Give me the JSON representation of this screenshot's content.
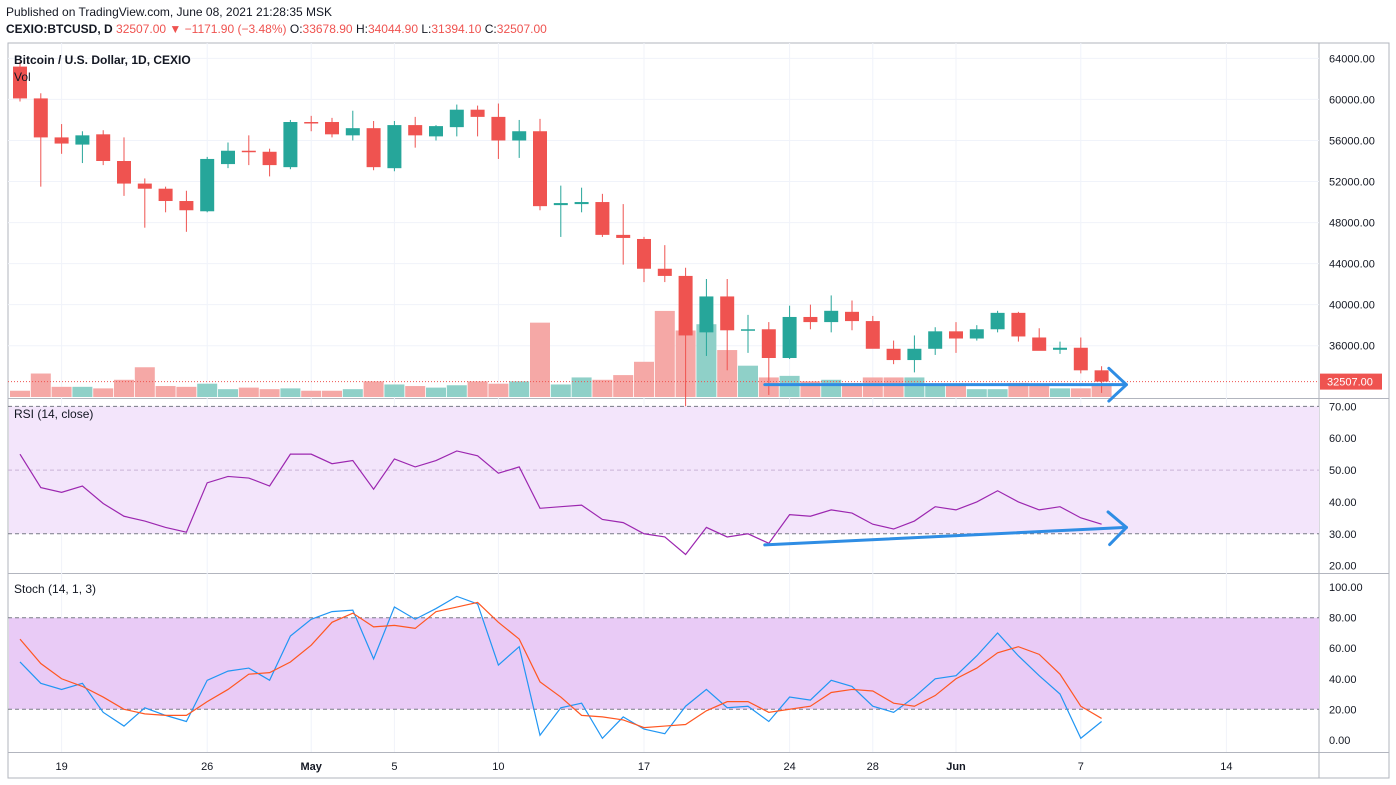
{
  "header": {
    "published": "Published on TradingView.com, June 08, 2021 21:28:35 MSK",
    "symbol": "CEXIO:BTCUSD, D",
    "last": "32507.00",
    "change": "−1171.90 (−3.48%)",
    "o_label": "O:",
    "o_value": "33678.90",
    "h_label": "H:",
    "h_value": "34044.90",
    "l_label": "L:",
    "l_value": "31394.10",
    "c_label": "C:",
    "c_value": "32507.00"
  },
  "colors": {
    "up": "#26a69a",
    "down": "#ef5350",
    "rsi": "#9c27b0",
    "stoch_k": "#2196f3",
    "stoch_d": "#ff5722",
    "arrow": "#2f8de4",
    "band": "#f3e5fb",
    "stoch_band": "#e9cbf6"
  },
  "chart_data": [
    {
      "type": "candlestick",
      "title": "Bitcoin / U.S. Dollar, 1D, CEXIO",
      "volume_label": "Vol",
      "last_price_label": "32507.00",
      "ylim": [
        31000,
        65500
      ],
      "y_ticks": [
        "64000.00",
        "60000.00",
        "56000.00",
        "52000.00",
        "48000.00",
        "44000.00",
        "40000.00",
        "36000.00"
      ],
      "x_ticks": [
        {
          "i": 2,
          "label": "19"
        },
        {
          "i": 9,
          "label": "26"
        },
        {
          "i": 14,
          "label": "May"
        },
        {
          "i": 18,
          "label": "5"
        },
        {
          "i": 23,
          "label": "10"
        },
        {
          "i": 30,
          "label": "17"
        },
        {
          "i": 37,
          "label": "24"
        },
        {
          "i": 41,
          "label": "28"
        },
        {
          "i": 45,
          "label": "Jun"
        },
        {
          "i": 51,
          "label": "7"
        },
        {
          "i": 58,
          "label": "14"
        }
      ],
      "ohlc": [
        [
          63200,
          63700,
          59800,
          60100
        ],
        [
          60100,
          60600,
          51500,
          56300
        ],
        [
          56300,
          57600,
          54700,
          55700
        ],
        [
          55600,
          56900,
          53800,
          56500
        ],
        [
          56600,
          57000,
          53600,
          54000
        ],
        [
          54000,
          56300,
          50600,
          51800
        ],
        [
          51800,
          52300,
          47500,
          51300
        ],
        [
          51300,
          51500,
          49000,
          50100
        ],
        [
          50100,
          51100,
          47100,
          49200
        ],
        [
          49100,
          54400,
          49000,
          54200
        ],
        [
          53700,
          55800,
          53300,
          55000
        ],
        [
          55000,
          56500,
          53600,
          54900
        ],
        [
          54900,
          55200,
          52500,
          53600
        ],
        [
          53400,
          58000,
          53200,
          57800
        ],
        [
          57800,
          58400,
          56900,
          57700
        ],
        [
          57800,
          58200,
          56300,
          56600
        ],
        [
          56500,
          58900,
          56000,
          57200
        ],
        [
          57200,
          57900,
          53100,
          53400
        ],
        [
          53300,
          57900,
          53000,
          57500
        ],
        [
          57500,
          58300,
          55300,
          56500
        ],
        [
          56400,
          57500,
          56000,
          57400
        ],
        [
          57300,
          59500,
          56400,
          59000
        ],
        [
          59000,
          59400,
          56400,
          58300
        ],
        [
          58300,
          59600,
          54200,
          56000
        ],
        [
          56000,
          58000,
          54300,
          56900
        ],
        [
          56900,
          58100,
          49200,
          49600
        ],
        [
          49700,
          51600,
          46600,
          49900
        ],
        [
          49800,
          51400,
          49000,
          50000
        ],
        [
          50000,
          50800,
          46600,
          46800
        ],
        [
          46800,
          49800,
          43900,
          46500
        ],
        [
          46400,
          46600,
          42200,
          43500
        ],
        [
          43500,
          45800,
          42200,
          42800
        ],
        [
          42800,
          43600,
          30100,
          37000
        ],
        [
          37300,
          42500,
          35000,
          40800
        ],
        [
          40800,
          42500,
          33600,
          37500
        ],
        [
          37500,
          39000,
          35300,
          37600
        ],
        [
          37600,
          38300,
          31200,
          34800
        ],
        [
          34800,
          39900,
          34700,
          38800
        ],
        [
          38800,
          40000,
          37600,
          38300
        ],
        [
          38300,
          40900,
          37300,
          39400
        ],
        [
          39300,
          40400,
          37500,
          38400
        ],
        [
          38400,
          38900,
          35800,
          35700
        ],
        [
          35700,
          36500,
          34200,
          34600
        ],
        [
          34600,
          37000,
          33400,
          35700
        ],
        [
          35700,
          37800,
          35100,
          37400
        ],
        [
          37400,
          38300,
          35300,
          36700
        ],
        [
          36700,
          38000,
          36500,
          37600
        ],
        [
          37600,
          39400,
          37300,
          39200
        ],
        [
          39200,
          39300,
          36400,
          36900
        ],
        [
          36800,
          37700,
          35700,
          35500
        ],
        [
          35600,
          36400,
          35200,
          35800
        ],
        [
          35800,
          36800,
          33300,
          33600
        ],
        [
          33600,
          34000,
          31400,
          32500
        ]
      ],
      "volume": [
        8,
        30,
        13,
        13,
        11,
        22,
        38,
        14,
        13,
        17,
        10,
        12,
        10,
        11,
        8,
        8,
        10,
        20,
        16,
        14,
        12,
        15,
        20,
        17,
        20,
        95,
        16,
        25,
        22,
        28,
        45,
        110,
        85,
        93,
        60,
        40,
        25,
        27,
        20,
        22,
        18,
        25,
        25,
        25,
        17,
        17,
        10,
        10,
        18,
        14,
        11,
        11,
        15
      ]
    },
    {
      "type": "line",
      "title": "RSI (14, close)",
      "ylim": [
        18,
        72
      ],
      "y_ticks": [
        "70.00",
        "60.00",
        "50.00",
        "40.00",
        "30.00",
        "20.00"
      ],
      "band": [
        30,
        70
      ],
      "series": [
        {
          "values": [
            55,
            44.5,
            43,
            45,
            39.5,
            35.5,
            34,
            32,
            30.5,
            46,
            48,
            47.5,
            45,
            55,
            55,
            52,
            53,
            44,
            53.5,
            51,
            53,
            56,
            54.5,
            49,
            51,
            38,
            38.5,
            39,
            34.5,
            33.5,
            30,
            29,
            23.5,
            32,
            29,
            30,
            27,
            36,
            35.5,
            37.5,
            36.5,
            33,
            31.5,
            34,
            38.5,
            37.5,
            40,
            43.5,
            40,
            37.5,
            38.5,
            35,
            33
          ]
        }
      ]
    },
    {
      "type": "line",
      "title": "Stoch (14, 1, 3)",
      "ylim": [
        -8,
        108
      ],
      "y_ticks": [
        "100.00",
        "80.00",
        "60.00",
        "40.00",
        "20.00",
        "0.00"
      ],
      "band": [
        20,
        80
      ],
      "series": [
        {
          "values": [
            51,
            37,
            33,
            37,
            18,
            9,
            21,
            16,
            12,
            39,
            45,
            47,
            39,
            68,
            79,
            84,
            85,
            53,
            87,
            79,
            86,
            94,
            89,
            49,
            61,
            3,
            21,
            24,
            1,
            15,
            7,
            4,
            22,
            33,
            21,
            22,
            12,
            28,
            26,
            39,
            35,
            22,
            18,
            28,
            40,
            42,
            55,
            70,
            55,
            42,
            30,
            1,
            12
          ]
        },
        {
          "values": [
            66,
            50,
            40,
            35,
            28,
            20,
            17,
            16,
            16,
            25,
            33,
            43,
            44,
            51,
            62,
            77,
            83,
            74,
            75,
            73,
            84,
            87,
            90,
            77,
            66,
            38,
            28,
            16,
            15,
            13,
            8,
            9,
            10,
            19,
            25,
            25,
            18,
            20,
            22,
            31,
            33,
            32,
            24,
            22,
            29,
            40,
            47,
            57,
            61,
            56,
            43,
            22,
            14
          ]
        }
      ]
    }
  ]
}
